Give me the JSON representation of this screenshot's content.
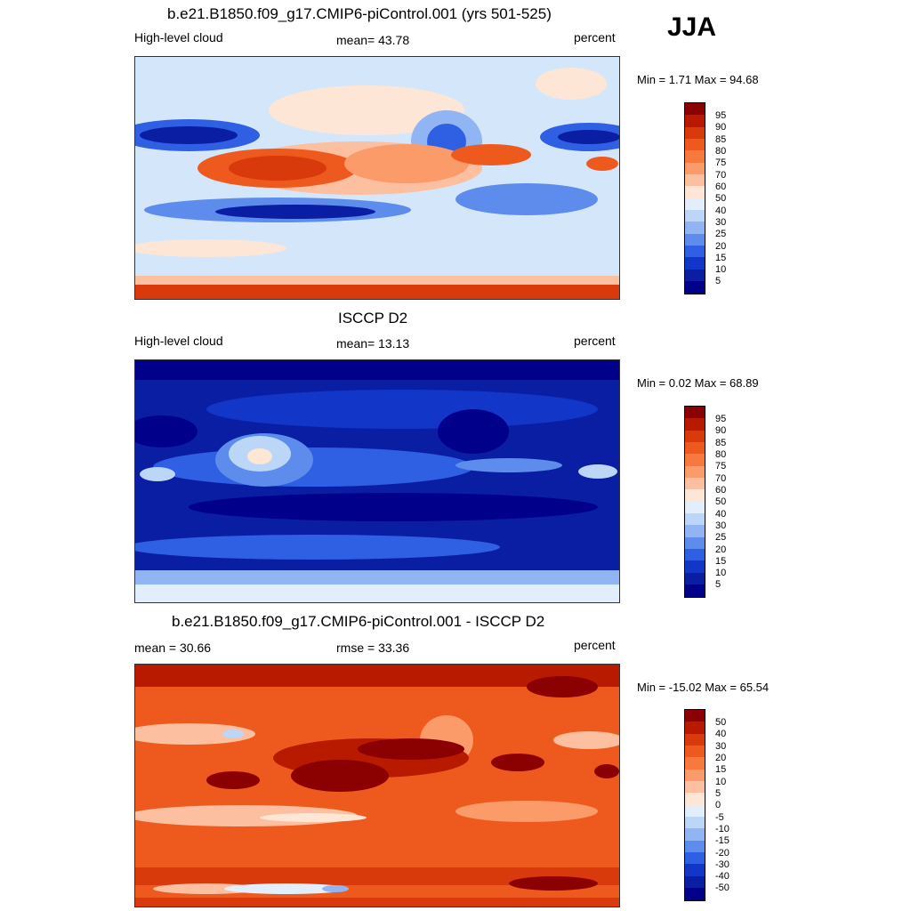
{
  "season": "JJA",
  "panels": [
    {
      "title": "b.e21.B1850.f09_g17.CMIP6-piControl.001 (yrs 501-525)",
      "left_label": "High-level cloud",
      "center_label": "mean=  43.78",
      "right_label": "percent",
      "minmax": "Min =   1.71 Max =  94.68"
    },
    {
      "title": "ISCCP D2",
      "left_label": "High-level cloud",
      "center_label": "mean=  13.13",
      "right_label": "percent",
      "minmax": "Min =   0.02 Max =  68.89"
    },
    {
      "title": "b.e21.B1850.f09_g17.CMIP6-piControl.001 - ISCCP D2",
      "left_label": "mean =  30.66",
      "center_label": "rmse =  33.36",
      "right_label": "percent",
      "minmax": "Min = -15.02 Max =  65.54"
    }
  ],
  "colorbars": {
    "abs_levels": [
      "95",
      "90",
      "85",
      "80",
      "75",
      "70",
      "60",
      "50",
      "40",
      "30",
      "25",
      "20",
      "15",
      "10",
      "5"
    ],
    "diff_levels": [
      "50",
      "40",
      "30",
      "20",
      "15",
      "10",
      "5",
      "0",
      "-5",
      "-10",
      "-15",
      "-20",
      "-30",
      "-40",
      "-50"
    ],
    "colors": [
      "#8b0000",
      "#b81a00",
      "#d93a0b",
      "#ee5a1e",
      "#f7793d",
      "#fb9b6a",
      "#fcbfa0",
      "#fde6d6",
      "#e2eefb",
      "#bcd6f7",
      "#90b5f2",
      "#5d8cec",
      "#2f5fe3",
      "#1236c8",
      "#0a1ea3",
      "#00008b"
    ]
  },
  "chart_data": [
    {
      "type": "heatmap",
      "title": "b.e21.B1850.f09_g17.CMIP6-piControl.001 (yrs 501-525)",
      "variable": "High-level cloud",
      "units": "percent",
      "season": "JJA",
      "mean": 43.78,
      "min": 1.71,
      "max": 94.68,
      "contour_levels": [
        5,
        10,
        15,
        20,
        25,
        30,
        40,
        50,
        60,
        70,
        75,
        80,
        85,
        90,
        95
      ]
    },
    {
      "type": "heatmap",
      "title": "ISCCP D2",
      "variable": "High-level cloud",
      "units": "percent",
      "season": "JJA",
      "mean": 13.13,
      "min": 0.02,
      "max": 68.89,
      "contour_levels": [
        5,
        10,
        15,
        20,
        25,
        30,
        40,
        50,
        60,
        70,
        75,
        80,
        85,
        90,
        95
      ]
    },
    {
      "type": "heatmap",
      "title": "b.e21.B1850.f09_g17.CMIP6-piControl.001 - ISCCP D2",
      "variable": "High-level cloud difference",
      "units": "percent",
      "season": "JJA",
      "mean": 30.66,
      "rmse": 33.36,
      "min": -15.02,
      "max": 65.54,
      "contour_levels": [
        -50,
        -40,
        -30,
        -20,
        -15,
        -10,
        -5,
        0,
        5,
        10,
        15,
        20,
        30,
        40,
        50
      ]
    }
  ]
}
